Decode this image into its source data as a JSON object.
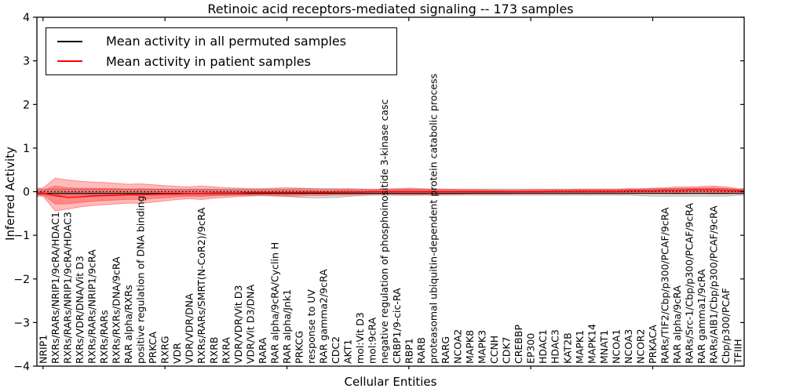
{
  "chart_data": {
    "type": "line",
    "title": "Retinoic acid receptors-mediated signaling -- 173 samples",
    "xlabel": "Cellular Entities",
    "ylabel": "Inferred Activity",
    "ylim": [
      -4,
      4
    ],
    "yticks": [
      -4,
      -3,
      -2,
      -1,
      0,
      1,
      2,
      3,
      4
    ],
    "xtick_positions": [
      0,
      10,
      20,
      30,
      40,
      50
    ],
    "grid": false,
    "legend_position": "upper left",
    "zero_line": {
      "style": "dotted",
      "color": "#000000",
      "y": 0
    },
    "categories": [
      "NRIP1",
      "RXRs/RARs/NRIP1/9cRA/HDAC1",
      "RXRs/RARs/NRIP1/9cRA/HDAC3",
      "RXRs/VDR/DNA/Vit D3",
      "RXRs/RARs/NRIP1/9cRA",
      "RXRs/RARs",
      "RXRs/RXRs/DNA/9cRA",
      "RAR alpha/RXRs",
      "positive regulation of DNA binding",
      "PRKCA",
      "RXRG",
      "VDR",
      "VDR/VDR/DNA",
      "RXRs/RARs/SMRT(N-CoR2)/9cRA",
      "RXRB",
      "RXRA",
      "VDR/VDR/Vit D3",
      "VDR/Vit D3/DNA",
      "RARA",
      "RAR alpha/9cRA/Cyclin H",
      "RAR alpha/Jnk1",
      "PRKCG",
      "response to UV",
      "RAR gamma2/9cRA",
      "CDC2",
      "AKT1",
      "mol:Vit D3",
      "mol:9cRA",
      "negative regulation of phosphoinositide 3-kinase casc",
      "CRBP1/9-cic-RA",
      "RBP1",
      "RARB",
      "proteasomal ubiquitin-dependent protein catabolic process",
      "RARG",
      "NCOA2",
      "MAPK8",
      "MAPK3",
      "CCNH",
      "CDK7",
      "CREBBP",
      "EP300",
      "HDAC1",
      "HDAC3",
      "KAT2B",
      "MAPK1",
      "MAPK14",
      "MNAT1",
      "NCOA1",
      "NCOA3",
      "NCOR2",
      "PRKACA",
      "RARs/TIF2/Cbp/p300/PCAF/9cRA",
      "RAR alpha/9cRA",
      "RARs/Src-1/Cbp/p300/PCAF/9cRA",
      "RAR gamma1/9cRA",
      "RARs/AIB1/Cbp/p300/PCAF/9cRA",
      "Cbp/p300/PCAF",
      "TFIIH"
    ],
    "series": [
      {
        "name": "Mean activity in all permuted samples",
        "color": "#000000",
        "style": "solid",
        "values": [
          -0.04,
          -0.04,
          -0.04,
          -0.04,
          -0.04,
          -0.04,
          -0.04,
          -0.04,
          -0.04,
          -0.04,
          -0.04,
          -0.04,
          -0.04,
          -0.04,
          -0.04,
          -0.04,
          -0.04,
          -0.04,
          -0.04,
          -0.04,
          -0.04,
          -0.04,
          -0.04,
          -0.04,
          -0.04,
          -0.04,
          -0.04,
          -0.04,
          -0.04,
          -0.04,
          -0.04,
          -0.04,
          -0.04,
          -0.04,
          -0.04,
          -0.04,
          -0.04,
          -0.04,
          -0.04,
          -0.04,
          -0.04,
          -0.04,
          -0.04,
          -0.04,
          -0.04,
          -0.04,
          -0.04,
          -0.04,
          -0.04,
          -0.04,
          -0.04,
          -0.04,
          -0.04,
          -0.04,
          -0.04,
          -0.04,
          -0.04,
          -0.04
        ]
      },
      {
        "name": "Mean activity in patient samples",
        "color": "#ff0000",
        "style": "solid",
        "values": [
          -0.03,
          -0.09,
          -0.13,
          -0.12,
          -0.1,
          -0.09,
          -0.08,
          -0.07,
          -0.07,
          -0.06,
          -0.05,
          -0.05,
          -0.04,
          -0.04,
          -0.03,
          -0.03,
          -0.03,
          -0.02,
          -0.02,
          -0.02,
          -0.02,
          -0.02,
          -0.01,
          -0.02,
          -0.01,
          -0.01,
          -0.01,
          0.0,
          0.0,
          0.0,
          0.0,
          0.0,
          0.0,
          0.0,
          0.0,
          0.0,
          0.0,
          0.0,
          0.0,
          0.0,
          0.0,
          0.0,
          0.01,
          0.01,
          0.01,
          0.01,
          0.01,
          0.01,
          0.02,
          0.02,
          0.02,
          0.03,
          0.03,
          0.04,
          0.04,
          0.04,
          0.03,
          0.02
        ]
      }
    ],
    "bands": [
      {
        "name": "permuted-samples-range",
        "fill": "rgba(0,0,0,0.13)",
        "edge": "rgba(0,0,0,0.25)",
        "upper": [
          0.06,
          0.06,
          0.06,
          0.06,
          0.06,
          0.06,
          0.06,
          0.06,
          0.06,
          0.06,
          0.06,
          0.06,
          0.06,
          0.06,
          0.06,
          0.06,
          0.06,
          0.06,
          0.06,
          0.06,
          0.06,
          0.07,
          0.07,
          0.07,
          0.07,
          0.06,
          0.06,
          0.06,
          0.06,
          0.06,
          0.06,
          0.06,
          0.06,
          0.06,
          0.06,
          0.06,
          0.06,
          0.06,
          0.06,
          0.06,
          0.06,
          0.06,
          0.06,
          0.06,
          0.06,
          0.06,
          0.06,
          0.06,
          0.06,
          0.06,
          0.07,
          0.07,
          0.07,
          0.07,
          0.07,
          0.07,
          0.07,
          0.06
        ],
        "lower": [
          -0.08,
          -0.08,
          -0.08,
          -0.08,
          -0.08,
          -0.08,
          -0.08,
          -0.08,
          -0.08,
          -0.08,
          -0.08,
          -0.08,
          -0.08,
          -0.08,
          -0.08,
          -0.08,
          -0.08,
          -0.08,
          -0.08,
          -0.09,
          -0.1,
          -0.13,
          -0.14,
          -0.14,
          -0.13,
          -0.11,
          -0.09,
          -0.08,
          -0.08,
          -0.08,
          -0.08,
          -0.08,
          -0.08,
          -0.08,
          -0.08,
          -0.08,
          -0.08,
          -0.08,
          -0.08,
          -0.08,
          -0.08,
          -0.08,
          -0.08,
          -0.08,
          -0.08,
          -0.08,
          -0.08,
          -0.08,
          -0.08,
          -0.09,
          -0.1,
          -0.1,
          -0.1,
          -0.1,
          -0.1,
          -0.1,
          -0.1,
          -0.08
        ]
      },
      {
        "name": "patient-samples-range",
        "fill": "rgba(255,0,0,0.27)",
        "edge": "rgba(255,60,60,0.5)",
        "upper": [
          0.08,
          0.31,
          0.27,
          0.24,
          0.22,
          0.21,
          0.19,
          0.17,
          0.18,
          0.16,
          0.14,
          0.12,
          0.11,
          0.13,
          0.11,
          0.09,
          0.08,
          0.07,
          0.07,
          0.08,
          0.09,
          0.08,
          0.07,
          0.06,
          0.06,
          0.07,
          0.06,
          0.05,
          0.06,
          0.07,
          0.08,
          0.07,
          0.06,
          0.06,
          0.05,
          0.05,
          0.05,
          0.04,
          0.04,
          0.04,
          0.05,
          0.05,
          0.05,
          0.05,
          0.06,
          0.06,
          0.06,
          0.06,
          0.07,
          0.07,
          0.08,
          0.09,
          0.11,
          0.11,
          0.12,
          0.13,
          0.11,
          0.07
        ],
        "lower": [
          -0.1,
          -0.44,
          -0.4,
          -0.35,
          -0.32,
          -0.3,
          -0.28,
          -0.26,
          -0.27,
          -0.24,
          -0.21,
          -0.18,
          -0.16,
          -0.18,
          -0.15,
          -0.13,
          -0.11,
          -0.1,
          -0.09,
          -0.1,
          -0.11,
          -0.1,
          -0.09,
          -0.09,
          -0.08,
          -0.08,
          -0.07,
          -0.06,
          -0.06,
          -0.07,
          -0.08,
          -0.07,
          -0.07,
          -0.06,
          -0.06,
          -0.05,
          -0.05,
          -0.05,
          -0.05,
          -0.04,
          -0.04,
          -0.04,
          -0.04,
          -0.04,
          -0.04,
          -0.04,
          -0.04,
          -0.04,
          -0.04,
          -0.04,
          -0.04,
          -0.04,
          -0.05,
          -0.04,
          -0.04,
          -0.05,
          -0.05,
          -0.03
        ]
      }
    ]
  }
}
